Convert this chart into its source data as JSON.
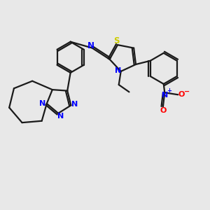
{
  "bg_color": "#e8e8e8",
  "bond_color": "#1a1a1a",
  "n_color": "#0000ff",
  "s_color": "#cccc00",
  "o_color": "#ff0000",
  "linewidth": 1.6,
  "figsize": [
    3.0,
    3.0
  ],
  "dpi": 100,
  "xlim": [
    0,
    10
  ],
  "ylim": [
    0,
    10
  ]
}
